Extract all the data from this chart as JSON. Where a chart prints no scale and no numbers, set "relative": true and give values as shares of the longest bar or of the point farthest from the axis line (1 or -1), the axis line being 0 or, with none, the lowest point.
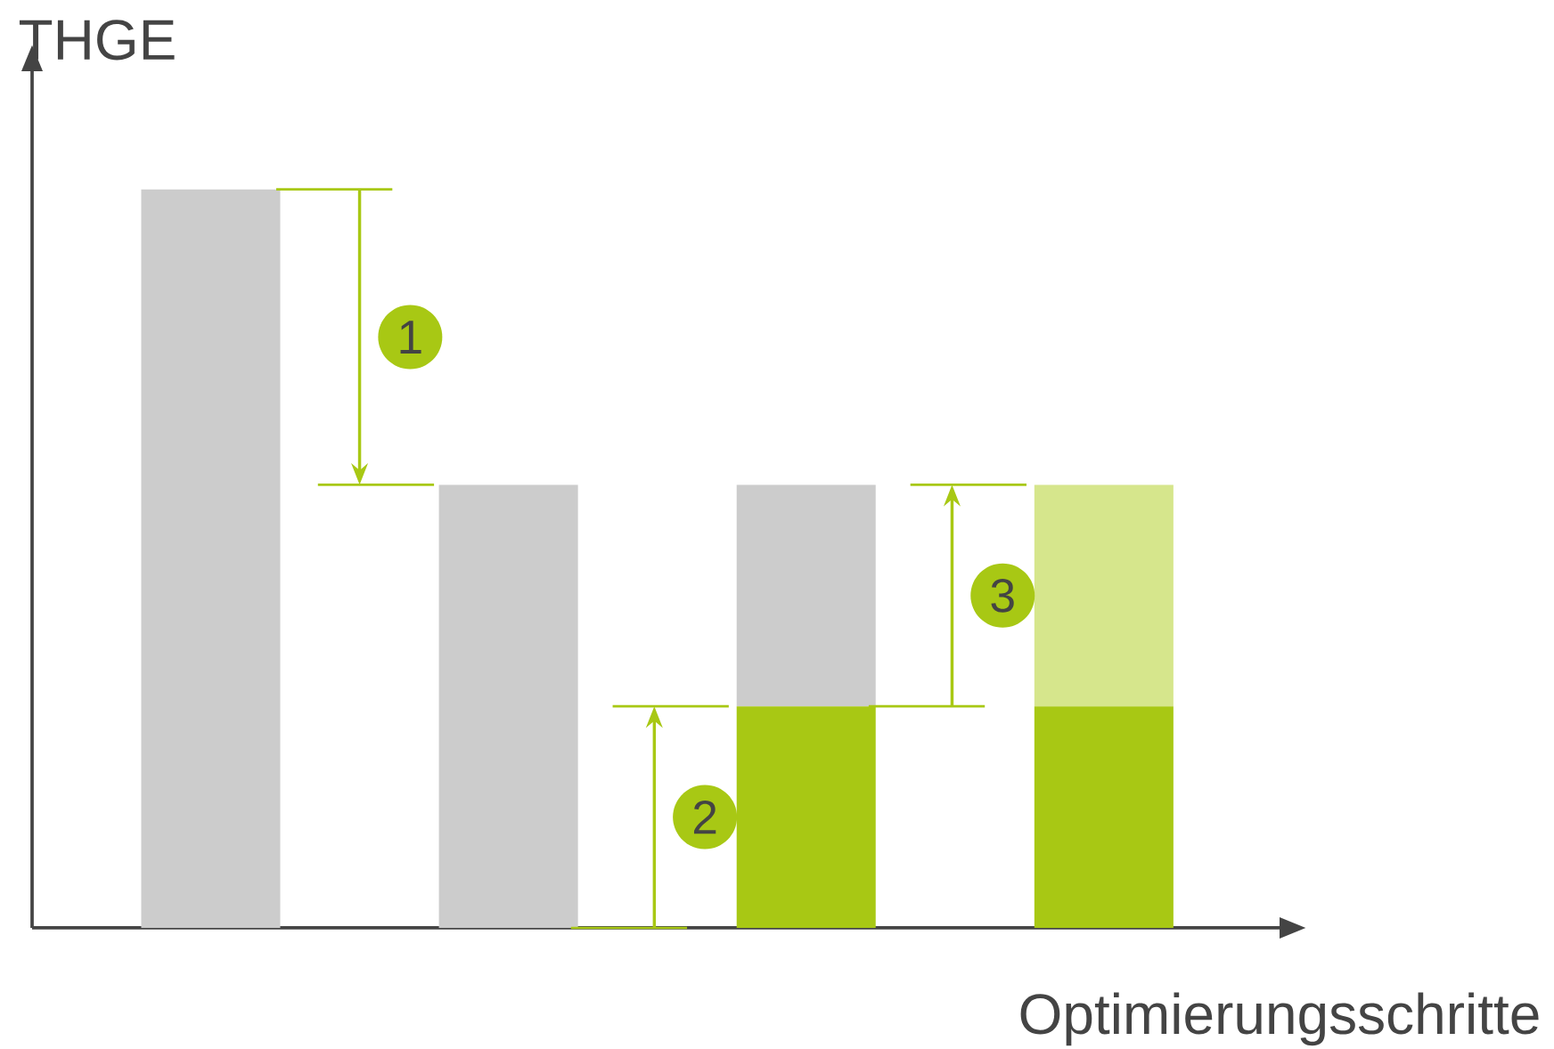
{
  "chart_data": {
    "type": "bar",
    "relative": true,
    "stacked": true,
    "xlabel": "Optimierungsschritte",
    "ylabel": "THGE",
    "categories": [
      null,
      null,
      null,
      null
    ],
    "series": [
      {
        "color": "#a8c814",
        "values": [
          null,
          null,
          0.3,
          0.3
        ]
      },
      {
        "color": "#cccccc",
        "values": [
          1,
          0.6,
          0.3,
          null
        ]
      },
      {
        "color": "#d6e68c",
        "values": [
          null,
          null,
          null,
          0.3
        ]
      }
    ],
    "annotations": [
      "1",
      "2",
      "3"
    ]
  }
}
